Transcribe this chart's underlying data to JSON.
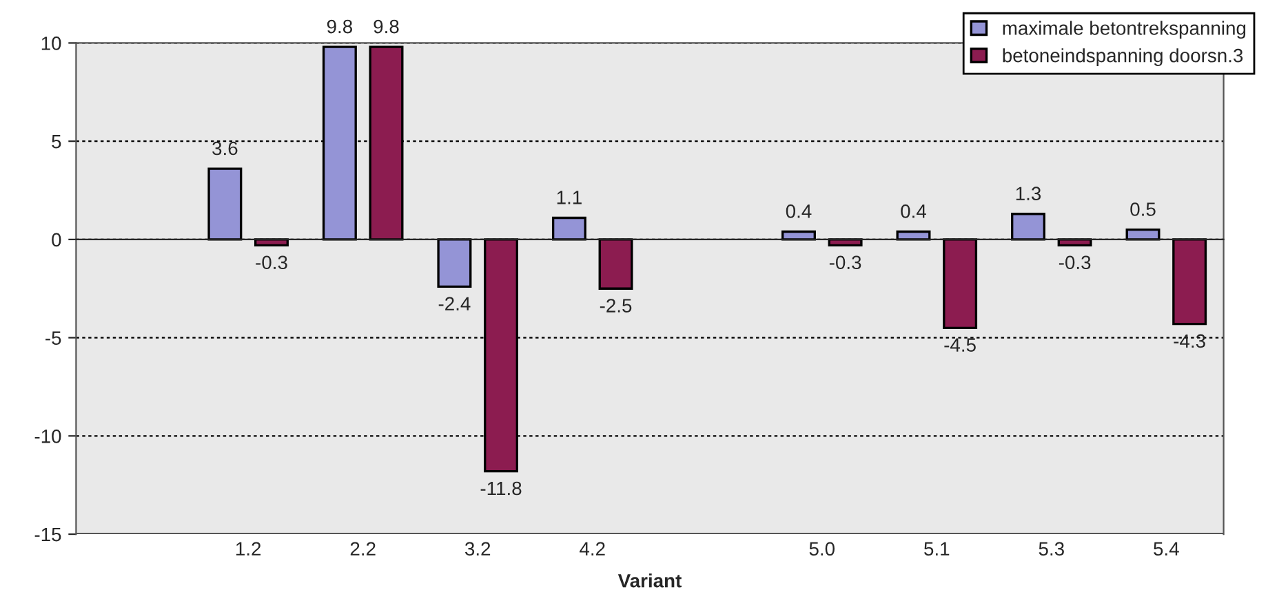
{
  "chart_data": {
    "type": "bar",
    "xlabel": "Variant",
    "categories": [
      null,
      "1.2",
      "2.2",
      "3.2",
      "4.2",
      null,
      "5.0",
      "5.1",
      "5.3",
      "5.4"
    ],
    "series": [
      {
        "name": "maximale betontrekspanning",
        "color": "#9494d6",
        "values": [
          null,
          3.6,
          9.8,
          -2.4,
          1.1,
          null,
          0.4,
          0.4,
          1.3,
          0.5
        ]
      },
      {
        "name": "betoneindspanning doorsn.3",
        "color": "#8c1c50",
        "values": [
          null,
          -0.3,
          9.8,
          -11.8,
          -2.5,
          null,
          -0.3,
          -4.5,
          -0.3,
          -4.3
        ]
      }
    ],
    "ylim": [
      -15,
      10
    ],
    "yticks": [
      -15,
      -10,
      -5,
      0,
      5,
      10
    ],
    "grid": "y",
    "legend": "top right",
    "data_labels": true
  }
}
